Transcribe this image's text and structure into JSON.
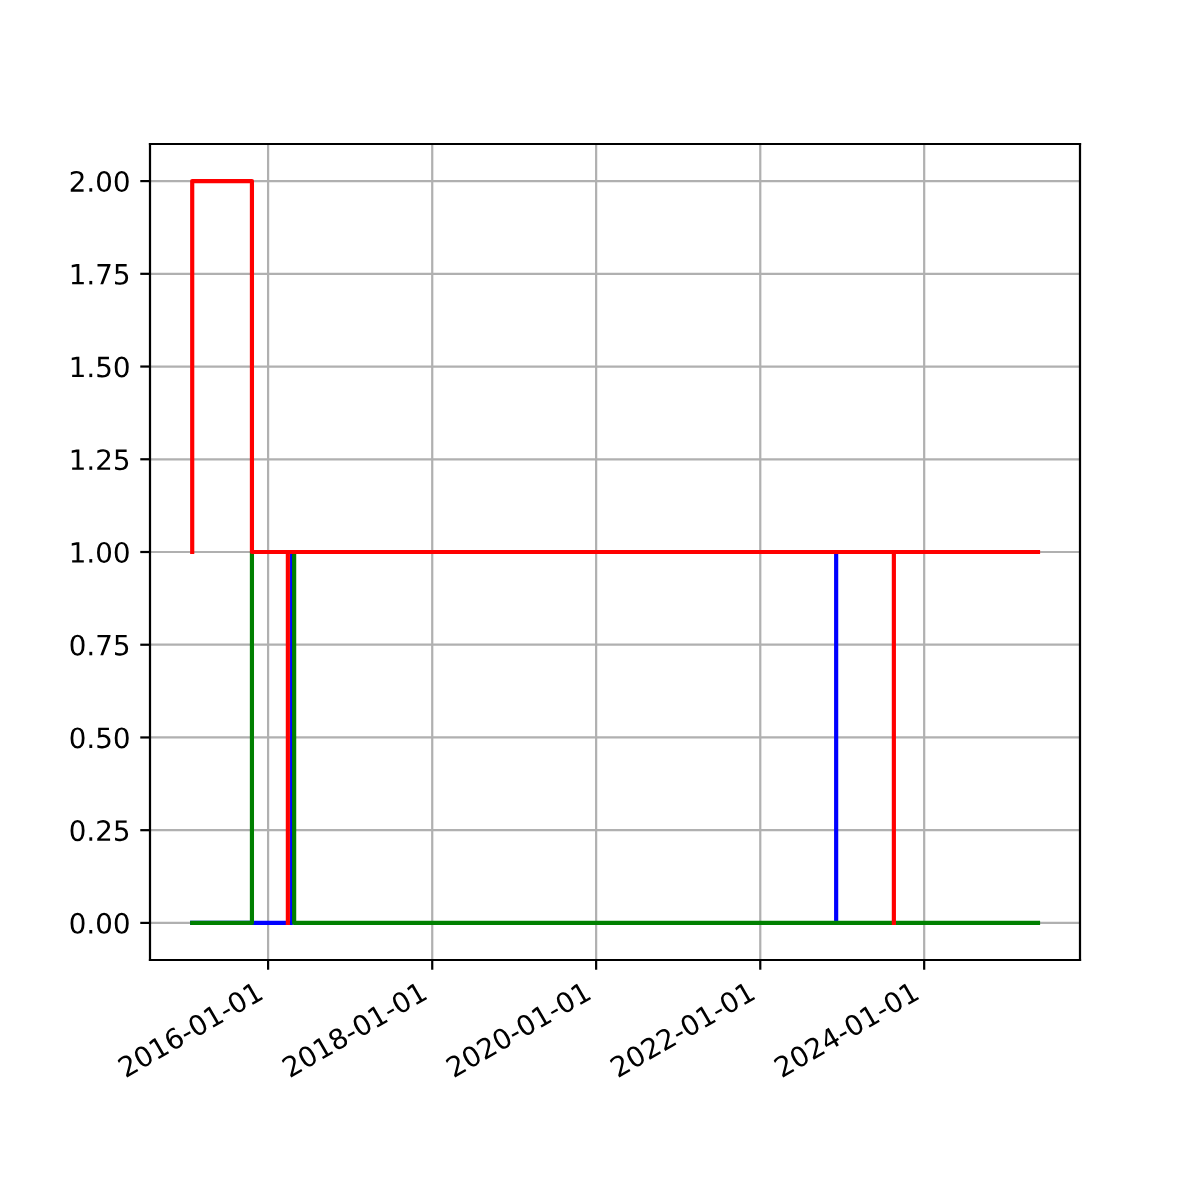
{
  "chart_data": {
    "type": "step",
    "xlim": [
      "2014-07-24",
      "2025-11-25"
    ],
    "ylim": [
      -0.1,
      2.1
    ],
    "xticks": [
      {
        "value": "2016-01-01",
        "label": "2016-01-01"
      },
      {
        "value": "2018-01-01",
        "label": "2018-01-01"
      },
      {
        "value": "2020-01-01",
        "label": "2020-01-01"
      },
      {
        "value": "2022-01-01",
        "label": "2022-01-01"
      },
      {
        "value": "2024-01-01",
        "label": "2024-01-01"
      }
    ],
    "yticks": [
      {
        "value": 0,
        "label": "0.00"
      },
      {
        "value": 0.25,
        "label": "0.25"
      },
      {
        "value": 0.5,
        "label": "0.50"
      },
      {
        "value": 0.75,
        "label": "0.75"
      },
      {
        "value": 1,
        "label": "1.00"
      },
      {
        "value": 1.25,
        "label": "1.25"
      },
      {
        "value": 1.5,
        "label": "1.50"
      },
      {
        "value": 1.75,
        "label": "1.75"
      },
      {
        "value": 2,
        "label": "2.00"
      }
    ],
    "grid": true,
    "series": [
      {
        "color": "#0000ff",
        "x": [
          "2015-01-28",
          "2016-04-17",
          "2022-12-05"
        ],
        "values": [
          0,
          1,
          0
        ]
      },
      {
        "color": "#008000",
        "x": [
          "2015-01-28",
          "2015-10-21",
          "2016-04-26",
          "2025-05-22"
        ],
        "values": [
          0,
          1,
          0,
          0
        ]
      },
      {
        "color": "#ff0000",
        "x": [
          "2015-01-28",
          "2015-01-28",
          "2015-10-21",
          "2025-05-22"
        ],
        "values": [
          1,
          2,
          1,
          1
        ]
      },
      {
        "color": "#ff0000",
        "x": [
          "2016-03-29",
          "2016-03-29",
          "2023-08-19"
        ],
        "values": [
          0,
          1,
          0
        ]
      }
    ]
  }
}
